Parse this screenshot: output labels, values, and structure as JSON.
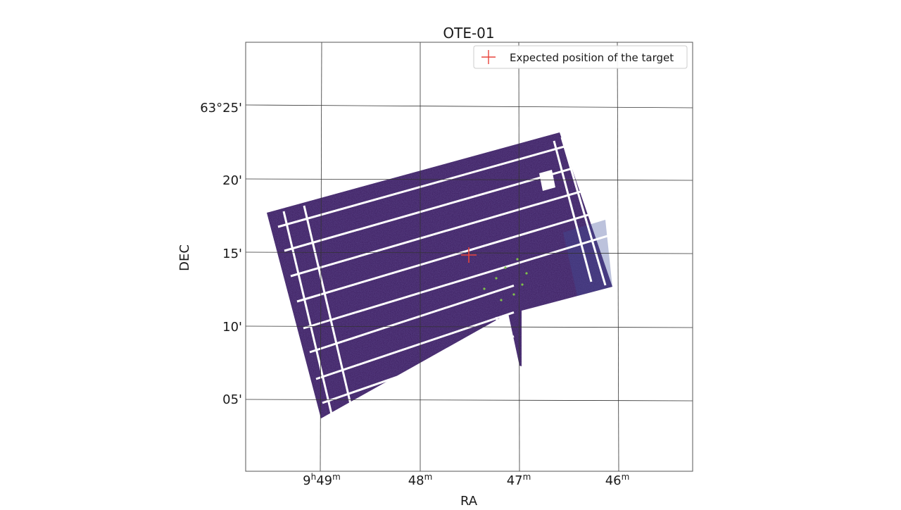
{
  "chart_data": {
    "type": "heatmap",
    "title": "OTE-01",
    "xlabel": "RA",
    "ylabel": "DEC",
    "projection": "sky (RA/DEC world coordinates)",
    "grid": true,
    "legend_placement": "top-right",
    "colormap": "viridis (predominantly dark purple)",
    "x_ticks": [
      {
        "label": "9h49m",
        "main": "9",
        "hsup": "h",
        "mid": "49",
        "msup": "m"
      },
      {
        "label": "48m",
        "main": "",
        "hsup": "",
        "mid": "48",
        "msup": "m"
      },
      {
        "label": "47m",
        "main": "",
        "hsup": "",
        "mid": "47",
        "msup": "m"
      },
      {
        "label": "46m",
        "main": "",
        "hsup": "",
        "mid": "46",
        "msup": "m"
      }
    ],
    "y_ticks": [
      "63°25'",
      "20'",
      "15'",
      "10'",
      "05'"
    ],
    "series": [
      {
        "name": "Expected position of the target",
        "type": "marker",
        "marker": "+",
        "color": "#e8453c",
        "ra": "9h47m32s",
        "dec": "63°14.9'"
      }
    ]
  },
  "colors": {
    "image_dark": "#3b1d5e",
    "image_mid": "#4a2a78",
    "image_blue": "#3e4f9a",
    "grid": "#333333",
    "marker": "#e8453c",
    "green_source": "#7fc24a"
  }
}
